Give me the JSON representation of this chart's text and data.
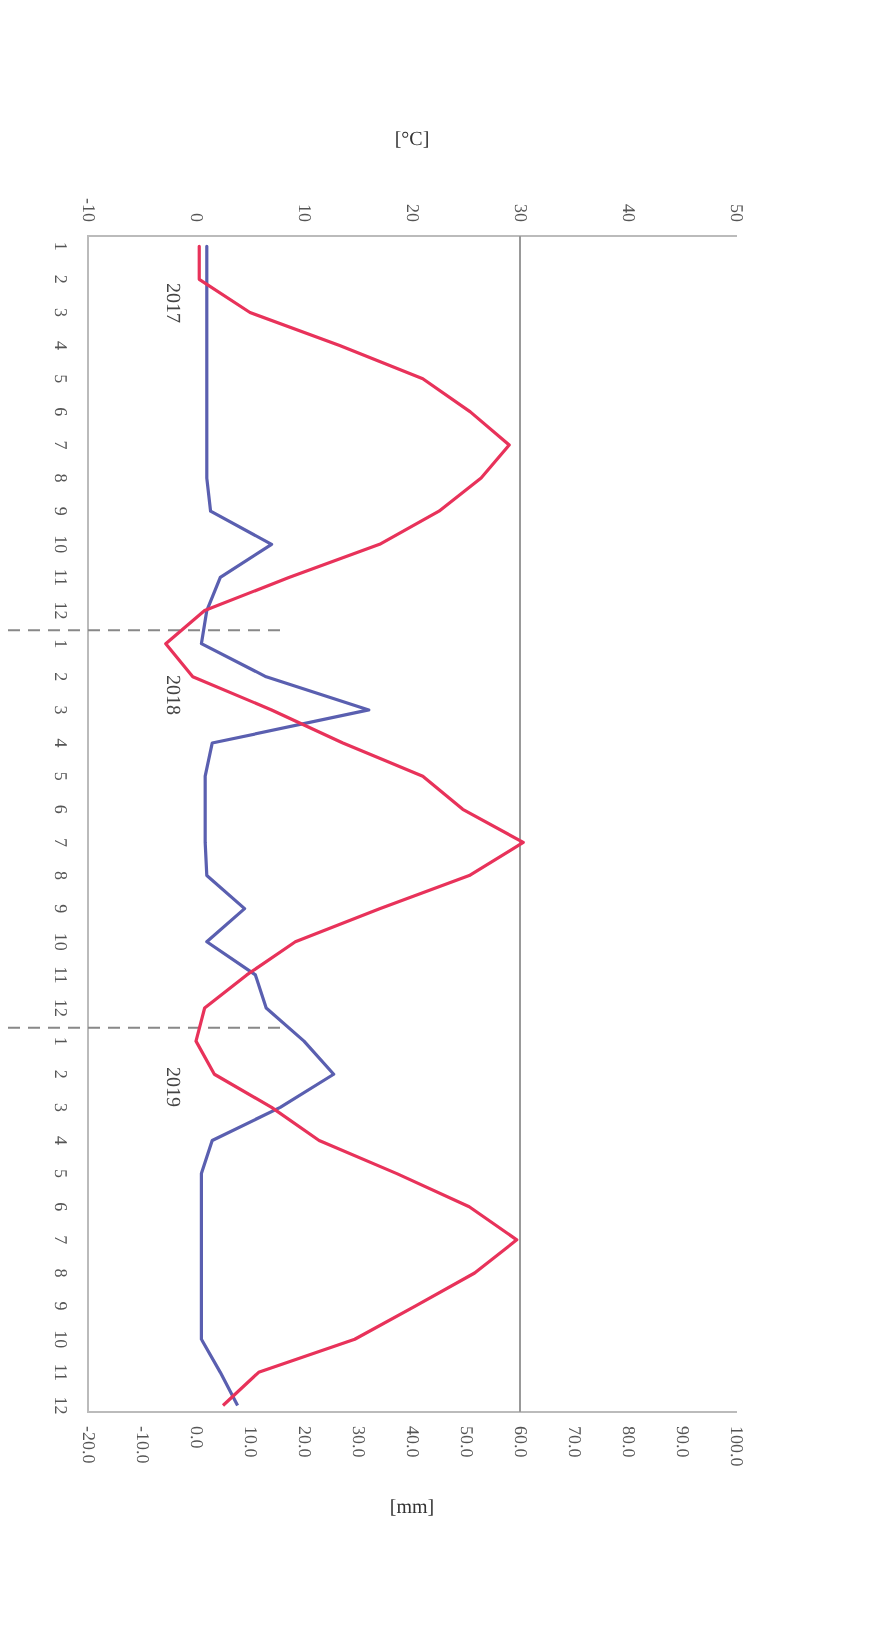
{
  "chart_data": {
    "type": "line",
    "orientation": "horizontal",
    "x": [
      "2017-01",
      "2017-02",
      "2017-03",
      "2017-04",
      "2017-05",
      "2017-06",
      "2017-07",
      "2017-08",
      "2017-09",
      "2017-10",
      "2017-11",
      "2017-12",
      "2018-01",
      "2018-02",
      "2018-03",
      "2018-04",
      "2018-05",
      "2018-06",
      "2018-07",
      "2018-08",
      "2018-09",
      "2018-10",
      "2018-11",
      "2018-12",
      "2019-01",
      "2019-02",
      "2019-03",
      "2019-04",
      "2019-05",
      "2019-06",
      "2019-07",
      "2019-08",
      "2019-09",
      "2019-10",
      "2019-11",
      "2019-12"
    ],
    "series": [
      {
        "name": null,
        "axis": "x2",
        "color": "#e8325a",
        "values": [
          0.3,
          0.3,
          5,
          13.3,
          21,
          25.4,
          29,
          26.4,
          22.5,
          17,
          8.6,
          0.8,
          -2.8,
          -0.3,
          7,
          13.6,
          21,
          24.7,
          30.3,
          25.3,
          17,
          9.2,
          4.7,
          0.8,
          0,
          1.7,
          7,
          11.4,
          18.6,
          25.3,
          29.7,
          25.8,
          20.3,
          14.7,
          5.8,
          2.5
        ]
      },
      {
        "name": null,
        "color": "#5a5fb0",
        "values": [
          2,
          2,
          2,
          2,
          2,
          2,
          2,
          2,
          2.7,
          14,
          4.5,
          2,
          1,
          13,
          32,
          3,
          1.7,
          1.7,
          1.7,
          2,
          9,
          2,
          11,
          13,
          20,
          25.5,
          15.6,
          3,
          1,
          1,
          1,
          1,
          1,
          1,
          4.5,
          7.7
        ]
      }
    ],
    "xlim": [
      -20,
      100
    ],
    "xticks": [
      {
        "value": -20,
        "label": "-20.0"
      },
      {
        "value": -10,
        "label": "-10.0"
      },
      {
        "value": 0,
        "label": "0.0"
      },
      {
        "value": 10,
        "label": "10.0"
      },
      {
        "value": 20,
        "label": "20.0"
      },
      {
        "value": 30,
        "label": "30.0"
      },
      {
        "value": 40,
        "label": "40.0"
      },
      {
        "value": 50,
        "label": "50.0"
      },
      {
        "value": 60,
        "label": "60.0"
      },
      {
        "value": 70,
        "label": "70.0"
      },
      {
        "value": 80,
        "label": "80.0"
      },
      {
        "value": 90,
        "label": "90.0"
      },
      {
        "value": 100,
        "label": "100.0"
      }
    ],
    "xlabel": "[mm]",
    "x2lim": [
      -10,
      50
    ],
    "x2ticks": [
      -10,
      0,
      10,
      20,
      30,
      40,
      50
    ],
    "x2label": "[°C]",
    "ylim": [
      "2019-12-07",
      "2016-12-22"
    ],
    "yticks": [
      {
        "value": "2017-01",
        "label": "1"
      },
      {
        "value": "2017-02",
        "label": "2"
      },
      {
        "value": "2017-03",
        "label": "3"
      },
      {
        "value": "2017-04",
        "label": "4"
      },
      {
        "value": "2017-05",
        "label": "5"
      },
      {
        "value": "2017-06",
        "label": "6"
      },
      {
        "value": "2017-07",
        "label": "7"
      },
      {
        "value": "2017-08",
        "label": "8"
      },
      {
        "value": "2017-09",
        "label": "9"
      },
      {
        "value": "2017-10",
        "label": "10"
      },
      {
        "value": "2017-11",
        "label": "11"
      },
      {
        "value": "2017-12",
        "label": "12"
      },
      {
        "value": "2018-01",
        "label": "1"
      },
      {
        "value": "2018-02",
        "label": "2"
      },
      {
        "value": "2018-03",
        "label": "3"
      },
      {
        "value": "2018-04",
        "label": "4"
      },
      {
        "value": "2018-05",
        "label": "5"
      },
      {
        "value": "2018-06",
        "label": "6"
      },
      {
        "value": "2018-07",
        "label": "7"
      },
      {
        "value": "2018-08",
        "label": "8"
      },
      {
        "value": "2018-09",
        "label": "9"
      },
      {
        "value": "2018-10",
        "label": "10"
      },
      {
        "value": "2018-11",
        "label": "11"
      },
      {
        "value": "2018-12",
        "label": "12"
      },
      {
        "value": "2019-01",
        "label": "1"
      },
      {
        "value": "2019-02",
        "label": "2"
      },
      {
        "value": "2019-03",
        "label": "3"
      },
      {
        "value": "2019-04",
        "label": "4"
      },
      {
        "value": "2019-05",
        "label": "5"
      },
      {
        "value": "2019-06",
        "label": "6"
      },
      {
        "value": "2019-07",
        "label": "7"
      },
      {
        "value": "2019-08",
        "label": "8"
      },
      {
        "value": "2019-09",
        "label": "9"
      },
      {
        "value": "2019-10",
        "label": "10"
      },
      {
        "value": "2019-11",
        "label": "11"
      },
      {
        "value": "2019-12",
        "label": "12"
      }
    ],
    "ref_lines": [
      {
        "axis": "y",
        "value": "2017-12-19",
        "color": "#888888",
        "line_style": "dashed"
      },
      {
        "axis": "y",
        "value": "2018-12-19",
        "color": "#888888",
        "line_style": "dashed"
      },
      {
        "axis": "x",
        "value": 60,
        "color": "#999999",
        "line_style": "solid"
      }
    ],
    "annotations": [
      "2017",
      "2018",
      "2019"
    ],
    "grid": false,
    "legend": false,
    "marker": "none",
    "line_style": "solid"
  }
}
